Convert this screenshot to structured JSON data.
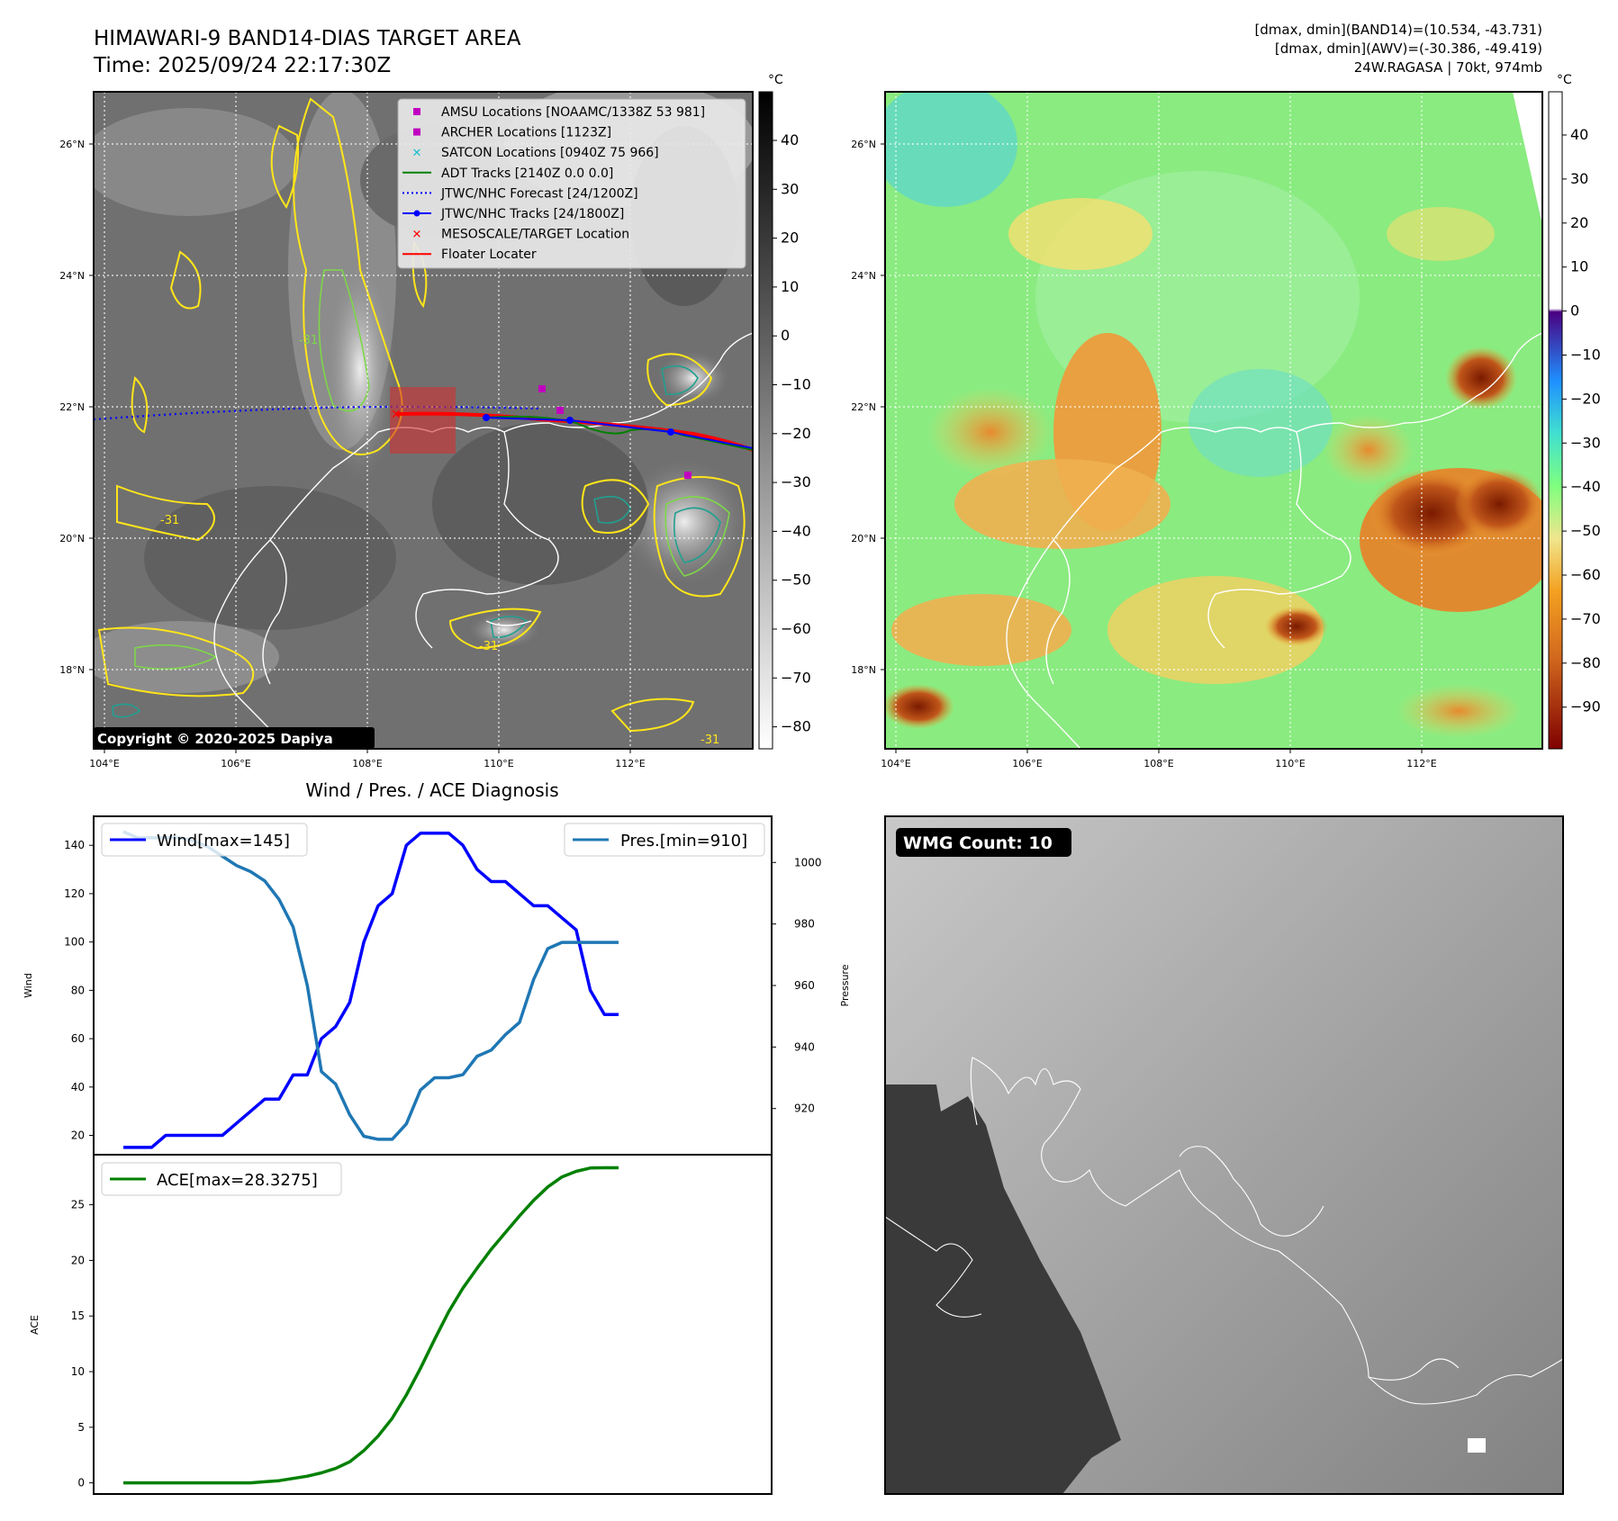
{
  "header": {
    "title": "HIMAWARI-9 BAND14-DIAS TARGET AREA",
    "time": "Time: 2025/09/24 22:17:30Z",
    "info_line1": "[dmax, dmin](BAND14)=(10.534, -43.731)",
    "info_line2": "[dmax, dmin](AWV)=(-30.386, -49.419)",
    "info_line3": "24W.RAGASA | 70kt, 974mb"
  },
  "map_panels": {
    "lat_ticks": [
      "26°N",
      "24°N",
      "22°N",
      "20°N",
      "18°N"
    ],
    "lon_ticks": [
      "104°E",
      "106°E",
      "108°E",
      "110°E",
      "112°E"
    ],
    "copyright": "Copyright © 2020-2025 Dapiya",
    "colorbar_unit": "°C",
    "left_colorbar_ticks": [
      "40",
      "30",
      "20",
      "10",
      "0",
      "−10",
      "−20",
      "−30",
      "−40",
      "−50",
      "−60",
      "−70",
      "−80"
    ],
    "right_colorbar_ticks": [
      "40",
      "30",
      "20",
      "10",
      "0",
      "−10",
      "−20",
      "−30",
      "−40",
      "−50",
      "−60",
      "−70",
      "−80",
      "−90"
    ],
    "contour_label": "-31",
    "legend": [
      {
        "label": "AMSU Locations [NOAAMC/1338Z 53 981]",
        "color": "#c000c0",
        "marker": "square"
      },
      {
        "label": "ARCHER Locations [1123Z]",
        "color": "#c000c0",
        "marker": "square"
      },
      {
        "label": "SATCON Locations [0940Z 75 966]",
        "color": "#17becf",
        "marker": "x"
      },
      {
        "label": "ADT Tracks [2140Z 0.0 0.0]",
        "color": "#008000",
        "marker": "line"
      },
      {
        "label": "JTWC/NHC Forecast [24/1200Z]",
        "color": "#0000ff",
        "marker": "dotted"
      },
      {
        "label": "JTWC/NHC Tracks [24/1800Z]",
        "color": "#0000ff",
        "marker": "line-dot"
      },
      {
        "label": "MESOSCALE/TARGET Location",
        "color": "#ff0000",
        "marker": "x"
      },
      {
        "label": "Floater Locater",
        "color": "#ff0000",
        "marker": "line"
      }
    ]
  },
  "diagnosis": {
    "title": "Wind / Pres. / ACE Diagnosis",
    "wind_ylabel": "Wind",
    "pres_ylabel": "Pressure",
    "ace_ylabel": "ACE",
    "wind_legend": "Wind[max=145]",
    "pres_legend": "Pres.[min=910]",
    "ace_legend": "ACE[max=28.3275]",
    "wind_ticks": [
      "140",
      "120",
      "100",
      "80",
      "60",
      "40",
      "20"
    ],
    "pres_ticks": [
      "1000",
      "980",
      "960",
      "940",
      "920"
    ],
    "ace_ticks": [
      "25",
      "20",
      "15",
      "10",
      "5",
      "0"
    ]
  },
  "wmg": {
    "label": "WMG Count: 10"
  },
  "chart_data": [
    {
      "type": "line",
      "title": "Wind / Pres. / ACE Diagnosis",
      "x": [
        0,
        1,
        2,
        3,
        4,
        5,
        6,
        7,
        8,
        9,
        10,
        11,
        12,
        13,
        14,
        15,
        16,
        17,
        18,
        19,
        20,
        21,
        22,
        23,
        24,
        25,
        26,
        27,
        28,
        29,
        30,
        31,
        32,
        33,
        34,
        35
      ],
      "series": [
        {
          "name": "Wind[max=145]",
          "axis": "left",
          "color": "#0000ff",
          "values": [
            15,
            15,
            15,
            20,
            20,
            20,
            20,
            20,
            25,
            30,
            35,
            35,
            45,
            45,
            60,
            65,
            75,
            100,
            115,
            120,
            140,
            145,
            145,
            145,
            140,
            130,
            125,
            125,
            120,
            115,
            115,
            110,
            105,
            80,
            70,
            70
          ]
        },
        {
          "name": "Pres.[min=910]",
          "axis": "right",
          "color": "#1f77b4",
          "values": [
            1010,
            1008,
            1008,
            1008,
            1008,
            1007,
            1005,
            1002,
            999,
            997,
            994,
            988,
            979,
            960,
            932,
            928,
            918,
            911,
            910,
            910,
            915,
            926,
            930,
            930,
            931,
            937,
            939,
            944,
            948,
            962,
            972,
            974,
            974,
            974,
            974,
            974
          ]
        }
      ],
      "ylim_left": [
        12,
        152
      ],
      "ylim_right": [
        905,
        1015
      ]
    },
    {
      "type": "line",
      "series": [
        {
          "name": "ACE[max=28.3275]",
          "color": "#008000",
          "values": [
            0,
            0,
            0,
            0,
            0,
            0,
            0,
            0,
            0,
            0,
            0.1,
            0.2,
            0.4,
            0.6,
            0.9,
            1.3,
            1.9,
            2.9,
            4.2,
            5.8,
            7.9,
            10.3,
            12.9,
            15.4,
            17.5,
            19.3,
            21.0,
            22.5,
            24.0,
            25.4,
            26.6,
            27.5,
            28.0,
            28.3,
            28.3275,
            28.3275
          ]
        }
      ],
      "ylim": [
        -1,
        29.5
      ]
    }
  ]
}
